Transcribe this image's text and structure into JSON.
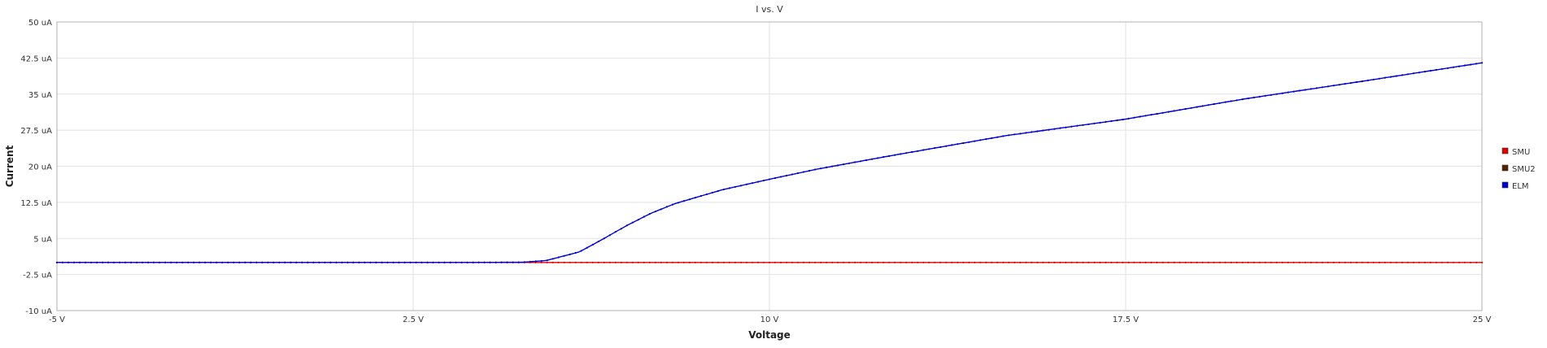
{
  "chart_data": {
    "type": "line",
    "title": "I vs. V",
    "xlabel": "Voltage",
    "ylabel": "Current",
    "xlim": [
      -5,
      25
    ],
    "ylim": [
      -10,
      50
    ],
    "x_ticks": [
      {
        "value": -5,
        "label": "-5 V"
      },
      {
        "value": 2.5,
        "label": "2.5 V"
      },
      {
        "value": 10,
        "label": "10 V"
      },
      {
        "value": 17.5,
        "label": "17.5 V"
      },
      {
        "value": 25,
        "label": "25 V"
      }
    ],
    "y_ticks": [
      {
        "value": -10,
        "label": "-10 uA"
      },
      {
        "value": -2.5,
        "label": "-2.5 uA"
      },
      {
        "value": 5,
        "label": "5 uA"
      },
      {
        "value": 12.5,
        "label": "12.5 uA"
      },
      {
        "value": 20,
        "label": "20 uA"
      },
      {
        "value": 27.5,
        "label": "27.5 uA"
      },
      {
        "value": 35,
        "label": "35 uA"
      },
      {
        "value": 42.5,
        "label": "42.5 uA"
      },
      {
        "value": 50,
        "label": "50 uA"
      }
    ],
    "grid": true,
    "legend_position": "right",
    "series": [
      {
        "name": "SMU",
        "color": "#dd0000",
        "x": [
          -5,
          0,
          5,
          8,
          10,
          15,
          20,
          25
        ],
        "y": [
          0,
          0,
          0,
          0,
          0,
          0,
          0,
          0
        ]
      },
      {
        "name": "SMU2",
        "color": "#552200",
        "x": [],
        "y": []
      },
      {
        "name": "ELM",
        "color": "#0000cc",
        "x": [
          -5,
          -2.5,
          0,
          2.5,
          3.5,
          4.8,
          5.3,
          6,
          6.5,
          7,
          7.5,
          8,
          9,
          10,
          11,
          12.5,
          15,
          17.5,
          20,
          22.5,
          25
        ],
        "y": [
          0,
          0,
          0,
          0,
          0,
          0.05,
          0.4,
          2.2,
          4.9,
          7.7,
          10.2,
          12.2,
          15.1,
          17.3,
          19.4,
          22.1,
          26.4,
          29.8,
          34.0,
          37.7,
          41.5
        ]
      }
    ]
  }
}
